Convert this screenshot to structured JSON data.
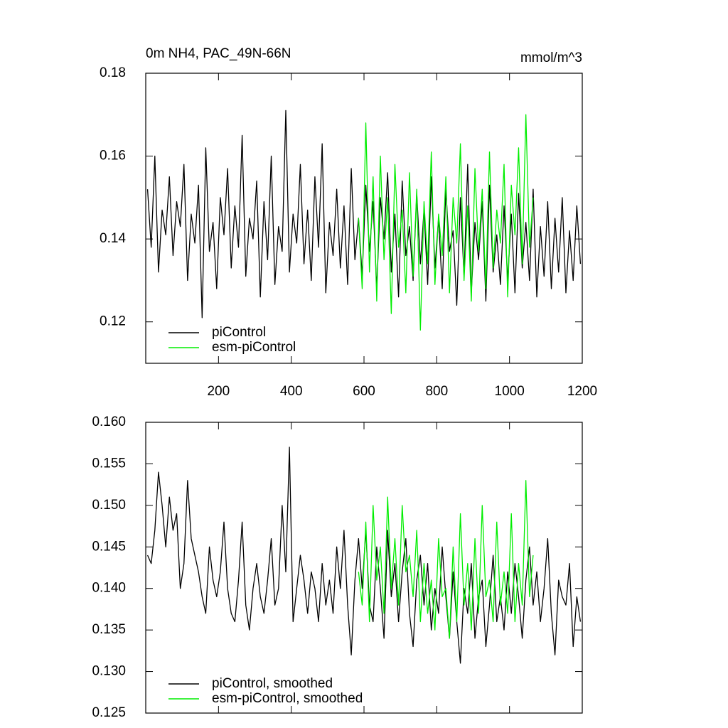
{
  "chart_data": [
    {
      "type": "line",
      "title": "0m NH4, PAC_49N-66N",
      "units": "mmol/m^3",
      "xlim": [
        0,
        1200
      ],
      "xticks": [
        200,
        400,
        600,
        800,
        1000,
        1200
      ],
      "xtick_labels": true,
      "ylim": [
        0.11,
        0.18
      ],
      "yticks": [
        0.12,
        0.14,
        0.16,
        0.18
      ],
      "series": [
        {
          "name": "piControl",
          "color": "#000000",
          "x": [
            5,
            15,
            25,
            35,
            45,
            55,
            65,
            75,
            85,
            95,
            105,
            115,
            125,
            135,
            145,
            155,
            165,
            175,
            185,
            195,
            205,
            215,
            225,
            235,
            245,
            255,
            265,
            275,
            285,
            295,
            305,
            315,
            325,
            335,
            345,
            355,
            365,
            375,
            385,
            395,
            405,
            415,
            425,
            435,
            445,
            455,
            465,
            475,
            485,
            495,
            505,
            515,
            525,
            535,
            545,
            555,
            565,
            575,
            585,
            595,
            605,
            615,
            625,
            635,
            645,
            655,
            665,
            675,
            685,
            695,
            705,
            715,
            725,
            735,
            745,
            755,
            765,
            775,
            785,
            795,
            805,
            815,
            825,
            835,
            845,
            855,
            865,
            875,
            885,
            895,
            905,
            915,
            925,
            935,
            945,
            955,
            965,
            975,
            985,
            995,
            1005,
            1015,
            1025,
            1035,
            1045,
            1055,
            1065,
            1075,
            1085,
            1095,
            1105,
            1115,
            1125,
            1135,
            1145,
            1155,
            1165,
            1175,
            1185,
            1195
          ],
          "values": [
            0.152,
            0.138,
            0.16,
            0.132,
            0.147,
            0.141,
            0.155,
            0.136,
            0.149,
            0.143,
            0.158,
            0.13,
            0.146,
            0.139,
            0.153,
            0.121,
            0.162,
            0.137,
            0.144,
            0.128,
            0.15,
            0.141,
            0.157,
            0.133,
            0.148,
            0.138,
            0.165,
            0.131,
            0.145,
            0.14,
            0.154,
            0.126,
            0.149,
            0.135,
            0.16,
            0.129,
            0.143,
            0.137,
            0.171,
            0.132,
            0.146,
            0.139,
            0.158,
            0.134,
            0.147,
            0.13,
            0.155,
            0.138,
            0.163,
            0.127,
            0.144,
            0.136,
            0.152,
            0.133,
            0.148,
            0.129,
            0.157,
            0.135,
            0.145,
            0.131,
            0.153,
            0.137,
            0.149,
            0.128,
            0.15,
            0.14,
            0.156,
            0.132,
            0.146,
            0.126,
            0.154,
            0.136,
            0.143,
            0.13,
            0.151,
            0.134,
            0.147,
            0.129,
            0.155,
            0.133,
            0.145,
            0.128,
            0.152,
            0.137,
            0.142,
            0.124,
            0.15,
            0.131,
            0.158,
            0.127,
            0.144,
            0.135,
            0.149,
            0.125,
            0.153,
            0.132,
            0.141,
            0.129,
            0.148,
            0.13,
            0.146,
            0.127,
            0.151,
            0.133,
            0.144,
            0.13,
            0.152,
            0.126,
            0.143,
            0.131,
            0.149,
            0.128,
            0.145,
            0.132,
            0.15,
            0.127,
            0.142,
            0.13,
            0.148,
            0.134
          ]
        },
        {
          "name": "esm-piControl",
          "color": "#00ee00",
          "x": [
            585,
            595,
            605,
            615,
            625,
            635,
            645,
            655,
            665,
            675,
            685,
            695,
            705,
            715,
            725,
            735,
            745,
            755,
            765,
            775,
            785,
            795,
            805,
            815,
            825,
            835,
            845,
            855,
            865,
            875,
            885,
            895,
            905,
            915,
            925,
            935,
            945,
            955,
            965,
            975,
            985,
            995,
            1005,
            1015,
            1025,
            1035,
            1045,
            1055,
            1065
          ],
          "values": [
            0.145,
            0.128,
            0.168,
            0.132,
            0.155,
            0.125,
            0.16,
            0.135,
            0.15,
            0.122,
            0.158,
            0.138,
            0.147,
            0.127,
            0.156,
            0.131,
            0.152,
            0.118,
            0.149,
            0.134,
            0.161,
            0.129,
            0.146,
            0.136,
            0.155,
            0.127,
            0.15,
            0.139,
            0.163,
            0.13,
            0.148,
            0.125,
            0.157,
            0.137,
            0.152,
            0.128,
            0.161,
            0.133,
            0.147,
            0.139,
            0.158,
            0.126,
            0.153,
            0.141,
            0.162,
            0.134,
            0.17,
            0.138,
            0.15
          ]
        }
      ]
    },
    {
      "type": "line",
      "xlim": [
        0,
        1200
      ],
      "xticks": [
        200,
        400,
        600,
        800,
        1000,
        1200
      ],
      "xtick_labels": false,
      "ylim": [
        0.125,
        0.16
      ],
      "yticks": [
        0.125,
        {
          "value": 0.13,
          "label": "0.130"
        },
        0.135,
        {
          "value": 0.14,
          "label": "0.140"
        },
        0.145,
        {
          "value": 0.15,
          "label": "0.150"
        },
        0.155,
        {
          "value": 0.16,
          "label": "0.160"
        }
      ],
      "series": [
        {
          "name": "piControl, smoothed",
          "color": "#000000",
          "x": [
            5,
            15,
            25,
            35,
            45,
            55,
            65,
            75,
            85,
            95,
            105,
            115,
            125,
            135,
            145,
            155,
            165,
            175,
            185,
            195,
            205,
            215,
            225,
            235,
            245,
            255,
            265,
            275,
            285,
            295,
            305,
            315,
            325,
            335,
            345,
            355,
            365,
            375,
            385,
            395,
            405,
            415,
            425,
            435,
            445,
            455,
            465,
            475,
            485,
            495,
            505,
            515,
            525,
            535,
            545,
            555,
            565,
            575,
            585,
            595,
            605,
            615,
            625,
            635,
            645,
            655,
            665,
            675,
            685,
            695,
            705,
            715,
            725,
            735,
            745,
            755,
            765,
            775,
            785,
            795,
            805,
            815,
            825,
            835,
            845,
            855,
            865,
            875,
            885,
            895,
            905,
            915,
            925,
            935,
            945,
            955,
            965,
            975,
            985,
            995,
            1005,
            1015,
            1025,
            1035,
            1045,
            1055,
            1065,
            1075,
            1085,
            1095,
            1105,
            1115,
            1125,
            1135,
            1145,
            1155,
            1165,
            1175,
            1185,
            1195
          ],
          "values": [
            0.144,
            0.143,
            0.147,
            0.154,
            0.15,
            0.145,
            0.151,
            0.147,
            0.149,
            0.14,
            0.143,
            0.153,
            0.146,
            0.144,
            0.142,
            0.139,
            0.137,
            0.145,
            0.141,
            0.139,
            0.142,
            0.148,
            0.14,
            0.137,
            0.136,
            0.141,
            0.148,
            0.138,
            0.135,
            0.14,
            0.143,
            0.139,
            0.137,
            0.141,
            0.146,
            0.138,
            0.14,
            0.15,
            0.142,
            0.157,
            0.136,
            0.14,
            0.144,
            0.141,
            0.137,
            0.142,
            0.14,
            0.136,
            0.143,
            0.138,
            0.141,
            0.137,
            0.145,
            0.14,
            0.147,
            0.138,
            0.132,
            0.141,
            0.146,
            0.14,
            0.147,
            0.138,
            0.136,
            0.145,
            0.14,
            0.134,
            0.147,
            0.139,
            0.143,
            0.136,
            0.142,
            0.146,
            0.137,
            0.133,
            0.141,
            0.144,
            0.138,
            0.143,
            0.135,
            0.14,
            0.137,
            0.145,
            0.139,
            0.134,
            0.142,
            0.136,
            0.131,
            0.14,
            0.137,
            0.143,
            0.134,
            0.139,
            0.141,
            0.133,
            0.138,
            0.144,
            0.136,
            0.139,
            0.135,
            0.142,
            0.137,
            0.143,
            0.139,
            0.134,
            0.141,
            0.145,
            0.138,
            0.142,
            0.136,
            0.14,
            0.146,
            0.137,
            0.132,
            0.141,
            0.139,
            0.138,
            0.143,
            0.133,
            0.139,
            0.136
          ]
        },
        {
          "name": "esm-piControl, smoothed",
          "color": "#00ee00",
          "x": [
            585,
            595,
            605,
            615,
            625,
            635,
            645,
            655,
            665,
            675,
            685,
            695,
            705,
            715,
            725,
            735,
            745,
            755,
            765,
            775,
            785,
            795,
            805,
            815,
            825,
            835,
            845,
            855,
            865,
            875,
            885,
            895,
            905,
            915,
            925,
            935,
            945,
            955,
            965,
            975,
            985,
            995,
            1005,
            1015,
            1025,
            1035,
            1045,
            1055,
            1065
          ],
          "values": [
            0.142,
            0.138,
            0.148,
            0.136,
            0.15,
            0.141,
            0.145,
            0.137,
            0.151,
            0.14,
            0.146,
            0.138,
            0.15,
            0.142,
            0.144,
            0.139,
            0.147,
            0.136,
            0.143,
            0.137,
            0.141,
            0.135,
            0.146,
            0.139,
            0.14,
            0.134,
            0.145,
            0.136,
            0.149,
            0.138,
            0.143,
            0.135,
            0.146,
            0.137,
            0.15,
            0.139,
            0.141,
            0.136,
            0.148,
            0.138,
            0.142,
            0.137,
            0.149,
            0.136,
            0.143,
            0.138,
            0.153,
            0.139,
            0.144
          ]
        }
      ]
    }
  ]
}
